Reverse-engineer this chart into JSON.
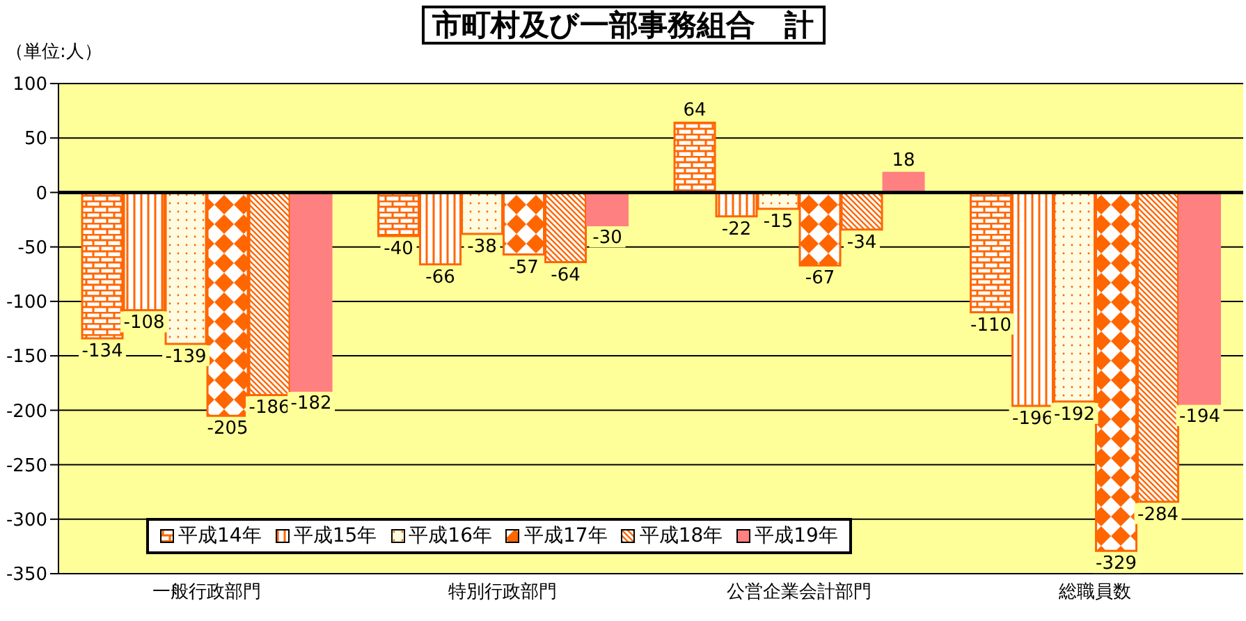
{
  "chart_data": {
    "type": "bar",
    "title": "市町村及び一部事務組合　計",
    "annotations": [
      "（単位:人）"
    ],
    "categories": [
      "一般行政部門",
      "特別行政部門",
      "公営企業会計部門",
      "総職員数"
    ],
    "series": [
      {
        "name": "平成14年",
        "color": "#ff6600",
        "values": [
          -134,
          -40,
          64,
          -110
        ]
      },
      {
        "name": "平成15年",
        "color": "#ff6600",
        "values": [
          -108,
          -66,
          -22,
          -196
        ]
      },
      {
        "name": "平成16年",
        "color": "#ff6600",
        "values": [
          -139,
          -38,
          -15,
          -192
        ]
      },
      {
        "name": "平成17年",
        "color": "#ff6600",
        "values": [
          -205,
          -57,
          -67,
          -329
        ]
      },
      {
        "name": "平成18年",
        "color": "#ff6600",
        "values": [
          -186,
          -64,
          -34,
          -284
        ]
      },
      {
        "name": "平成19年",
        "color": "#ff8080",
        "values": [
          -182,
          -30,
          18,
          -194
        ]
      }
    ],
    "ylim": [
      -350,
      100
    ],
    "yticks": [
      -350,
      -300,
      -250,
      -200,
      -150,
      -100,
      -50,
      0,
      50,
      100
    ],
    "grid": "y",
    "legend": "bottom left",
    "data_labels": true
  }
}
